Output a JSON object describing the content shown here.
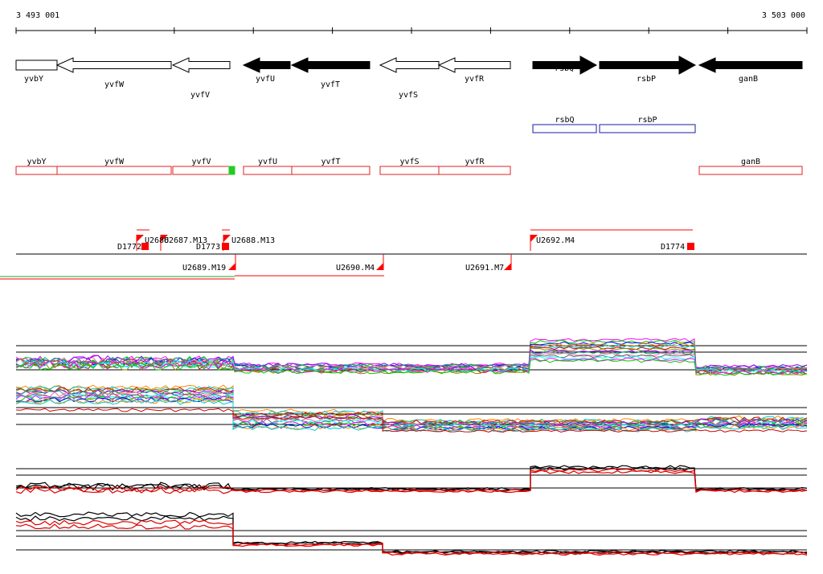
{
  "ruler": {
    "start_label": "3 493 001",
    "end_label": "3 503 000"
  },
  "genes_top": [
    {
      "label": "yvbY",
      "strand": "-",
      "fill": "open"
    },
    {
      "label": "yvfW",
      "strand": "-",
      "fill": "open"
    },
    {
      "label": "yvfV",
      "strand": "-",
      "fill": "open"
    },
    {
      "label": "yvfU",
      "strand": "-",
      "fill": "solid"
    },
    {
      "label": "yvfT",
      "strand": "-",
      "fill": "solid"
    },
    {
      "label": "yvfS",
      "strand": "-",
      "fill": "open"
    },
    {
      "label": "yvfR",
      "strand": "-",
      "fill": "open"
    },
    {
      "label": "rsbQ",
      "strand": "+",
      "fill": "solid"
    },
    {
      "label": "rsbP",
      "strand": "+",
      "fill": "solid"
    },
    {
      "label": "ganB",
      "strand": "-",
      "fill": "solid"
    }
  ],
  "genes_blue": [
    {
      "label": "rsbQ"
    },
    {
      "label": "rsbP"
    }
  ],
  "genes_red": [
    {
      "label": "yvbY"
    },
    {
      "label": "yvfW"
    },
    {
      "label": "yvfV"
    },
    {
      "label": "yvfU"
    },
    {
      "label": "yvfT"
    },
    {
      "label": "yvfS"
    },
    {
      "label": "yvfR"
    },
    {
      "label": "ganB"
    }
  ],
  "transcription_units": [
    {
      "label": "D1772"
    },
    {
      "label": "U2686"
    },
    {
      "label": "U2687.M13"
    },
    {
      "label": "D1773"
    },
    {
      "label": "U2688.M13"
    },
    {
      "label": "U2689.M19"
    },
    {
      "label": "U2690.M4"
    },
    {
      "label": "U2691.M7"
    },
    {
      "label": "U2692.M4"
    },
    {
      "label": "D1774"
    }
  ],
  "colors": {
    "gene_solid": "#000000",
    "blue_box": "#1a1aa8",
    "red_box": "#e02020",
    "green_marker": "#22cc22",
    "tu_marker": "#ff0000"
  }
}
